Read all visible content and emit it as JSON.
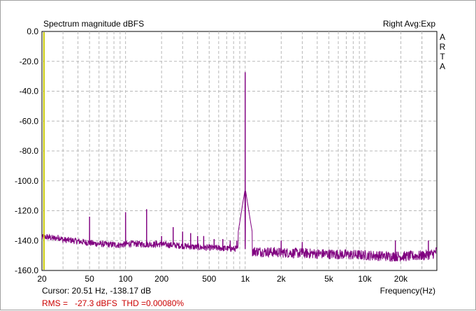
{
  "chart_data": {
    "type": "line",
    "title": "Spectrum magnitude dBFS",
    "channel_label": "Right Avg:Exp",
    "brand_letters": [
      "A",
      "R",
      "T",
      "A"
    ],
    "xlabel": "Frequency(Hz)",
    "ylabel": "",
    "x_scale": "log",
    "xlim": [
      20,
      40000
    ],
    "ylim": [
      -160,
      0
    ],
    "x_ticks": [
      {
        "value": 20,
        "label": "20"
      },
      {
        "value": 50,
        "label": "50"
      },
      {
        "value": 100,
        "label": "100"
      },
      {
        "value": 200,
        "label": "200"
      },
      {
        "value": 500,
        "label": "500"
      },
      {
        "value": 1000,
        "label": "1k"
      },
      {
        "value": 2000,
        "label": "2k"
      },
      {
        "value": 5000,
        "label": "5k"
      },
      {
        "value": 10000,
        "label": "10k"
      },
      {
        "value": 20000,
        "label": "20k"
      }
    ],
    "y_ticks": [
      {
        "value": 0,
        "label": "0.0"
      },
      {
        "value": -20,
        "label": "-20.0"
      },
      {
        "value": -40,
        "label": "-40.0"
      },
      {
        "value": -60,
        "label": "-60.0"
      },
      {
        "value": -80,
        "label": "-80.0"
      },
      {
        "value": -100,
        "label": "-100.0"
      },
      {
        "value": -120,
        "label": "-120.0"
      },
      {
        "value": -140,
        "label": "-140.0"
      },
      {
        "value": -160,
        "label": "-160.0"
      }
    ],
    "grid": true,
    "cursor_x": 20.51,
    "series": [
      {
        "color": "#800080",
        "floor": [
          [
            20,
            -138
          ],
          [
            22,
            -137.5
          ],
          [
            25,
            -138.5
          ],
          [
            28,
            -138
          ],
          [
            30,
            -139.5
          ],
          [
            35,
            -139.8
          ],
          [
            40,
            -140.5
          ],
          [
            45,
            -141
          ],
          [
            55,
            -142
          ],
          [
            70,
            -142.5
          ],
          [
            90,
            -143
          ],
          [
            110,
            -142
          ],
          [
            150,
            -142.5
          ],
          [
            200,
            -142.5
          ],
          [
            300,
            -143.5
          ],
          [
            400,
            -144.5
          ],
          [
            600,
            -145
          ],
          [
            800,
            -145.5
          ],
          [
            950,
            -145
          ],
          [
            1100,
            -147
          ],
          [
            1500,
            -147.5
          ],
          [
            2000,
            -148
          ],
          [
            3000,
            -148.5
          ],
          [
            5000,
            -149
          ],
          [
            8000,
            -149.5
          ],
          [
            12000,
            -150
          ],
          [
            16000,
            -150.5
          ],
          [
            22000,
            -150.5
          ],
          [
            30000,
            -150
          ],
          [
            37000,
            -149
          ],
          [
            40000,
            -147
          ]
        ],
        "peaks": [
          {
            "f": 50,
            "db": -124
          },
          {
            "f": 100,
            "db": -121
          },
          {
            "f": 150,
            "db": -119
          },
          {
            "f": 180,
            "db": -140
          },
          {
            "f": 200,
            "db": -137
          },
          {
            "f": 250,
            "db": -131
          },
          {
            "f": 300,
            "db": -134
          },
          {
            "f": 350,
            "db": -135
          },
          {
            "f": 400,
            "db": -137
          },
          {
            "f": 450,
            "db": -137
          },
          {
            "f": 550,
            "db": -139
          },
          {
            "f": 650,
            "db": -139
          },
          {
            "f": 750,
            "db": -140
          },
          {
            "f": 850,
            "db": -140
          },
          {
            "f": 1000,
            "db": -27.3
          },
          {
            "f": 2000,
            "db": -140
          },
          {
            "f": 3000,
            "db": -141
          },
          {
            "f": 18000,
            "db": -140
          },
          {
            "f": 34000,
            "db": -140
          }
        ]
      }
    ]
  },
  "status": {
    "cursor": "Cursor: 20.51 Hz, -138.17 dB",
    "rms_label": "RMS =",
    "rms_value": "-27.3 dBFS",
    "thd_label": "THD =0.00080%"
  },
  "colors": {
    "trace": "#800080",
    "cursor": "#c8c800",
    "grid": "#b8b8b8",
    "status_red": "#cc0000"
  }
}
